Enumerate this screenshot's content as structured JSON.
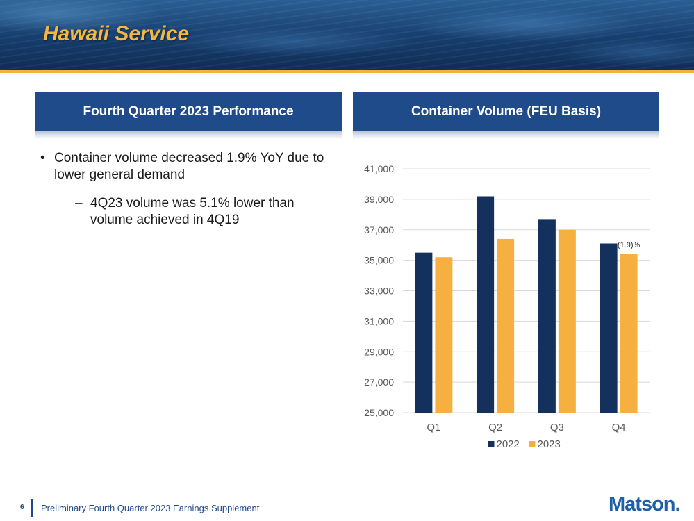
{
  "slide": {
    "title": "Hawaii Service"
  },
  "left_panel": {
    "header": "Fourth Quarter 2023 Performance",
    "bullet_symbol": "•",
    "dash_symbol": "–",
    "bullet": "Container volume decreased 1.9% YoY due to lower general demand",
    "sub_bullet": "4Q23 volume was 5.1% lower than volume achieved in 4Q19"
  },
  "right_panel": {
    "header": "Container Volume (FEU Basis)"
  },
  "chart_data": {
    "type": "bar",
    "title": "Container Volume (FEU Basis)",
    "categories": [
      "Q1",
      "Q2",
      "Q3",
      "Q4"
    ],
    "series": [
      {
        "name": "2022",
        "color": "#13315c",
        "values": [
          35500,
          39200,
          37700,
          36100
        ]
      },
      {
        "name": "2023",
        "color": "#f5b040",
        "values": [
          35200,
          36400,
          37000,
          35400
        ]
      }
    ],
    "ylim": [
      25000,
      41000
    ],
    "yticks": [
      "25,000",
      "27,000",
      "29,000",
      "31,000",
      "33,000",
      "35,000",
      "37,000",
      "39,000",
      "41,000"
    ],
    "grid": true,
    "legend": "bottom",
    "annotations": [
      {
        "category": "Q4",
        "series": "2023",
        "text": "(1.9)%"
      }
    ]
  },
  "footer": {
    "page_number": "6",
    "text": "Preliminary Fourth Quarter 2023 Earnings Supplement",
    "logo": "Matson."
  }
}
